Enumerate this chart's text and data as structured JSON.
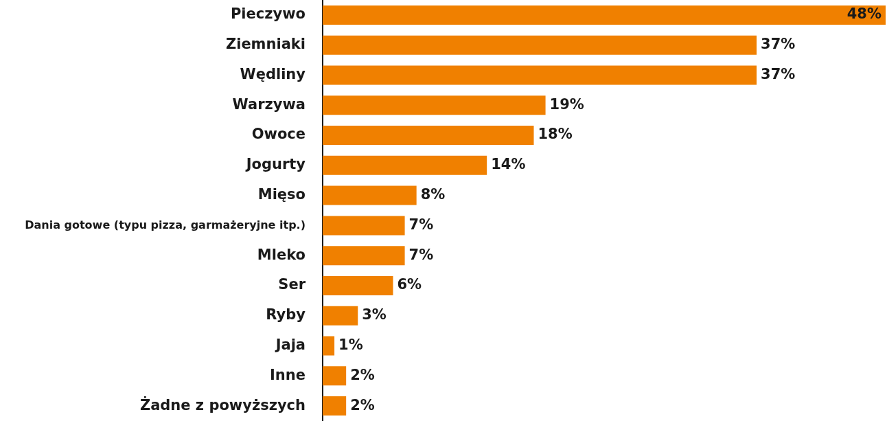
{
  "chart_data": {
    "type": "bar",
    "orientation": "horizontal",
    "categories": [
      "Pieczywo",
      "Ziemniaki",
      "Wędliny",
      "Warzywa",
      "Owoce",
      "Jogurty",
      "Mięso",
      "Dania gotowe (typu pizza, garmażeryjne itp.)",
      "Mleko",
      "Ser",
      "Ryby",
      "Jaja",
      "Inne",
      "Żadne z powyższych"
    ],
    "values": [
      48,
      37,
      37,
      19,
      18,
      14,
      8,
      7,
      7,
      6,
      3,
      1,
      2,
      2
    ],
    "value_labels": [
      "48%",
      "37%",
      "37%",
      "19%",
      "18%",
      "14%",
      "8%",
      "7%",
      "7%",
      "6%",
      "3%",
      "1%",
      "2%",
      "2%"
    ],
    "color": "#f08000"
  }
}
